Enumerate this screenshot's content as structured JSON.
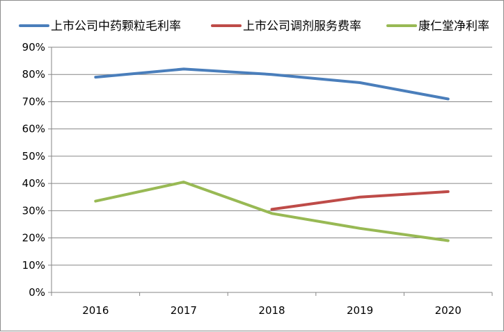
{
  "chart_data": {
    "type": "line",
    "title": "",
    "xlabel": "",
    "ylabel": "",
    "categories": [
      "2016",
      "2017",
      "2018",
      "2019",
      "2020"
    ],
    "ylim": [
      0,
      90
    ],
    "y_ticks": [
      0,
      10,
      20,
      30,
      40,
      50,
      60,
      70,
      80,
      90
    ],
    "y_tick_labels": [
      "0%",
      "10%",
      "20%",
      "30%",
      "40%",
      "50%",
      "60%",
      "70%",
      "80%",
      "90%"
    ],
    "grid": "horizontal",
    "legend_position": "top",
    "series": [
      {
        "name": "上市公司中药颗粒毛利率",
        "color": "#4a7ebb",
        "values": [
          79,
          82,
          80,
          77,
          71
        ]
      },
      {
        "name": "上市公司调剂服务费率",
        "color": "#be4b48",
        "values": [
          null,
          null,
          30.5,
          35,
          37
        ]
      },
      {
        "name": "康仁堂净利率",
        "color": "#98b954",
        "values": [
          33.5,
          40.5,
          29,
          23.5,
          19
        ]
      }
    ]
  }
}
